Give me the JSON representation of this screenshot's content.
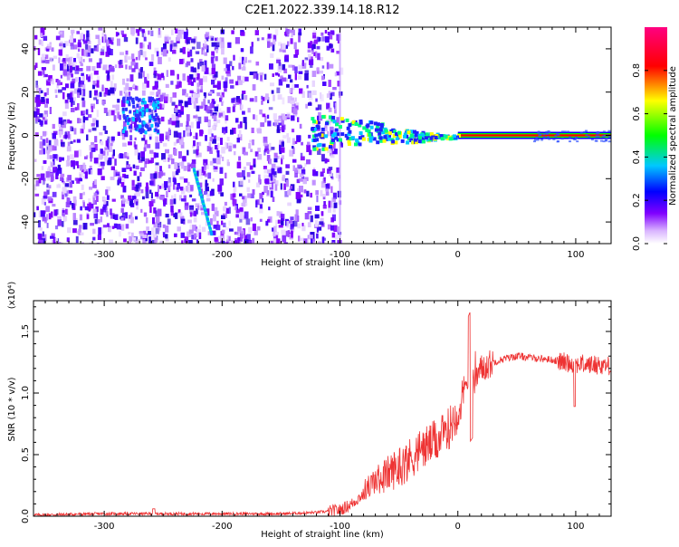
{
  "title": "C2E1.2022.339.14.18.R12",
  "chart_data": [
    {
      "type": "heatmap",
      "xlabel": "Height of straight line (km)",
      "ylabel": "Frequency (Hz)",
      "xlim": [
        -360,
        130
      ],
      "ylim": [
        -50,
        50
      ],
      "xticks": [
        -300,
        -200,
        -100,
        0,
        100
      ],
      "yticks": [
        -40,
        -20,
        0,
        20,
        40
      ],
      "colorbar": {
        "label": "Normalized spectral amplitude",
        "range": [
          0,
          1
        ],
        "ticks": [
          "0.0",
          "0.2",
          "0.4",
          "0.6",
          "0.8"
        ],
        "colormap": [
          "#ffffff",
          "#8000ff",
          "#0000ff",
          "#00c0ff",
          "#00ff00",
          "#ffff00",
          "#ff0000",
          "#ff0080"
        ]
      },
      "features": {
        "noise_region_x": [
          -360,
          -100
        ],
        "carrier_frequency": 0,
        "carrier_x_range": [
          -100,
          130
        ],
        "diagonal_streak": {
          "x": [
            -225,
            -210
          ],
          "y": [
            -15,
            -45
          ]
        }
      }
    },
    {
      "type": "line",
      "xlabel": "Height of straight line (km)",
      "ylabel": "SNR (10 * v/v)",
      "yscale_note": "(x10⁴)",
      "xlim": [
        -360,
        130
      ],
      "ylim": [
        0,
        1.75
      ],
      "xticks": [
        -300,
        -200,
        -100,
        0,
        100
      ],
      "yticks": [
        "0.0",
        "0.5",
        "1.0",
        "1.5"
      ],
      "series": [
        {
          "color": "#ee3333",
          "x": [
            -360,
            -300,
            -250,
            -200,
            -150,
            -120,
            -100,
            -90,
            -80,
            -70,
            -60,
            -50,
            -40,
            -30,
            -20,
            -10,
            0,
            10,
            20,
            30,
            40,
            50,
            60,
            70,
            80,
            90,
            100,
            110,
            120,
            130
          ],
          "y": [
            0.01,
            0.02,
            0.02,
            0.02,
            0.02,
            0.03,
            0.05,
            0.1,
            0.18,
            0.25,
            0.3,
            0.35,
            0.42,
            0.5,
            0.55,
            0.62,
            0.8,
            1.05,
            1.2,
            1.25,
            1.28,
            1.3,
            1.29,
            1.28,
            1.27,
            1.25,
            1.24,
            1.23,
            1.23,
            1.22
          ]
        }
      ]
    }
  ]
}
